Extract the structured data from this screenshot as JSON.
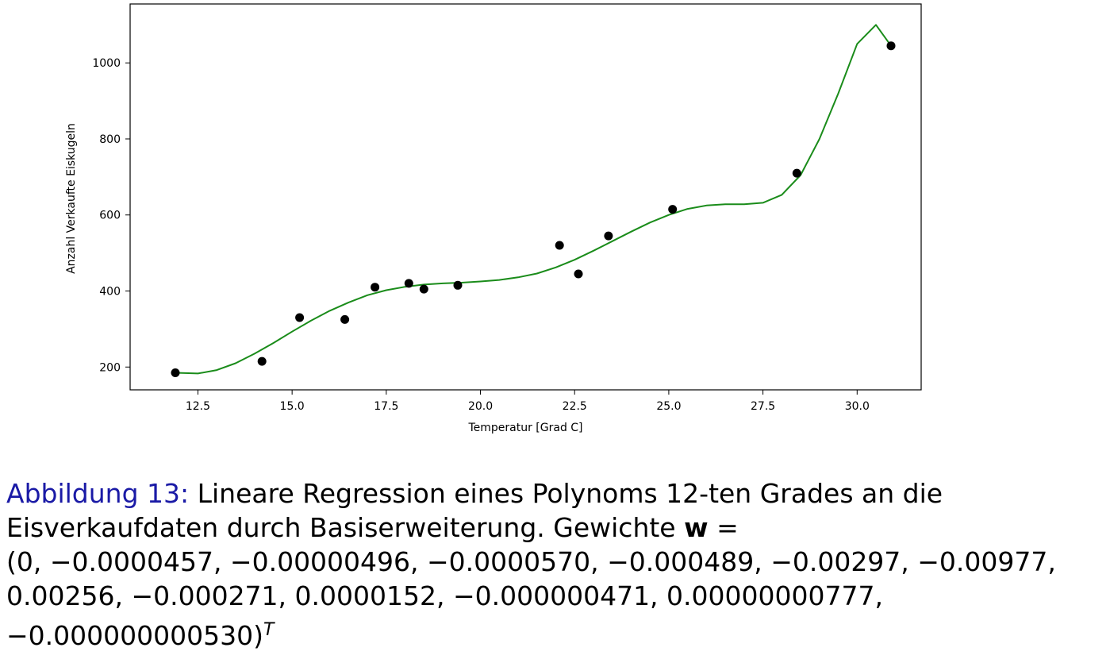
{
  "chart_data": {
    "type": "scatter",
    "title": "",
    "xlabel": "Temperatur [Grad C]",
    "ylabel": "Anzahl Verkaufte Eiskugeln",
    "xlim": [
      10.7,
      31.7
    ],
    "ylim": [
      140,
      1155
    ],
    "xticks": [
      12.5,
      15.0,
      17.5,
      20.0,
      22.5,
      25.0,
      27.5,
      30.0
    ],
    "xtick_labels": [
      "12.5",
      "15.0",
      "17.5",
      "20.0",
      "22.5",
      "25.0",
      "27.5",
      "30.0"
    ],
    "yticks": [
      200,
      400,
      600,
      800,
      1000
    ],
    "ytick_labels": [
      "200",
      "400",
      "600",
      "800",
      "1000"
    ],
    "grid": false,
    "points": {
      "color": "#000000",
      "x": [
        11.9,
        14.2,
        15.2,
        16.4,
        17.2,
        18.1,
        18.5,
        19.4,
        22.1,
        22.6,
        23.4,
        25.1,
        28.4,
        30.9
      ],
      "y": [
        185,
        215,
        330,
        325,
        410,
        420,
        405,
        415,
        520,
        445,
        545,
        615,
        710,
        1045
      ]
    },
    "fit_curve": {
      "color": "#1a8c1a",
      "x": [
        11.9,
        12.5,
        13.0,
        13.5,
        14.0,
        14.5,
        15.0,
        15.5,
        16.0,
        16.5,
        17.0,
        17.5,
        18.0,
        18.5,
        19.0,
        19.5,
        20.0,
        20.5,
        21.0,
        21.5,
        22.0,
        22.5,
        23.0,
        23.5,
        24.0,
        24.5,
        25.0,
        25.5,
        26.0,
        26.5,
        27.0,
        27.5,
        28.0,
        28.5,
        29.0,
        29.5,
        30.0,
        30.5,
        30.9
      ],
      "y": [
        185,
        183,
        192,
        210,
        235,
        263,
        293,
        322,
        348,
        370,
        389,
        402,
        411,
        417,
        420,
        422,
        425,
        429,
        436,
        446,
        462,
        482,
        506,
        531,
        556,
        580,
        600,
        616,
        625,
        628,
        628,
        632,
        653,
        705,
        800,
        920,
        1050,
        1100,
        1045
      ]
    }
  },
  "caption": {
    "label": "Abbildung 13:",
    "line1": " Lineare Regression eines Polynoms 12-ten Grades an die",
    "line2_text": "Eisverkaufdaten durch Basiserweiterung. Gewichte ",
    "line2_symbol": "w",
    "line2_eq": " =",
    "line3": "(0, −0.0000457, −0.00000496, −0.0000570, −0.000489, −0.00297, −0.00977,",
    "line4": "0.00256, −0.000271, 0.0000152, −0.000000471, 0.00000000777,",
    "line5_text": "−0.000000000530)",
    "line5_sup": "T"
  }
}
